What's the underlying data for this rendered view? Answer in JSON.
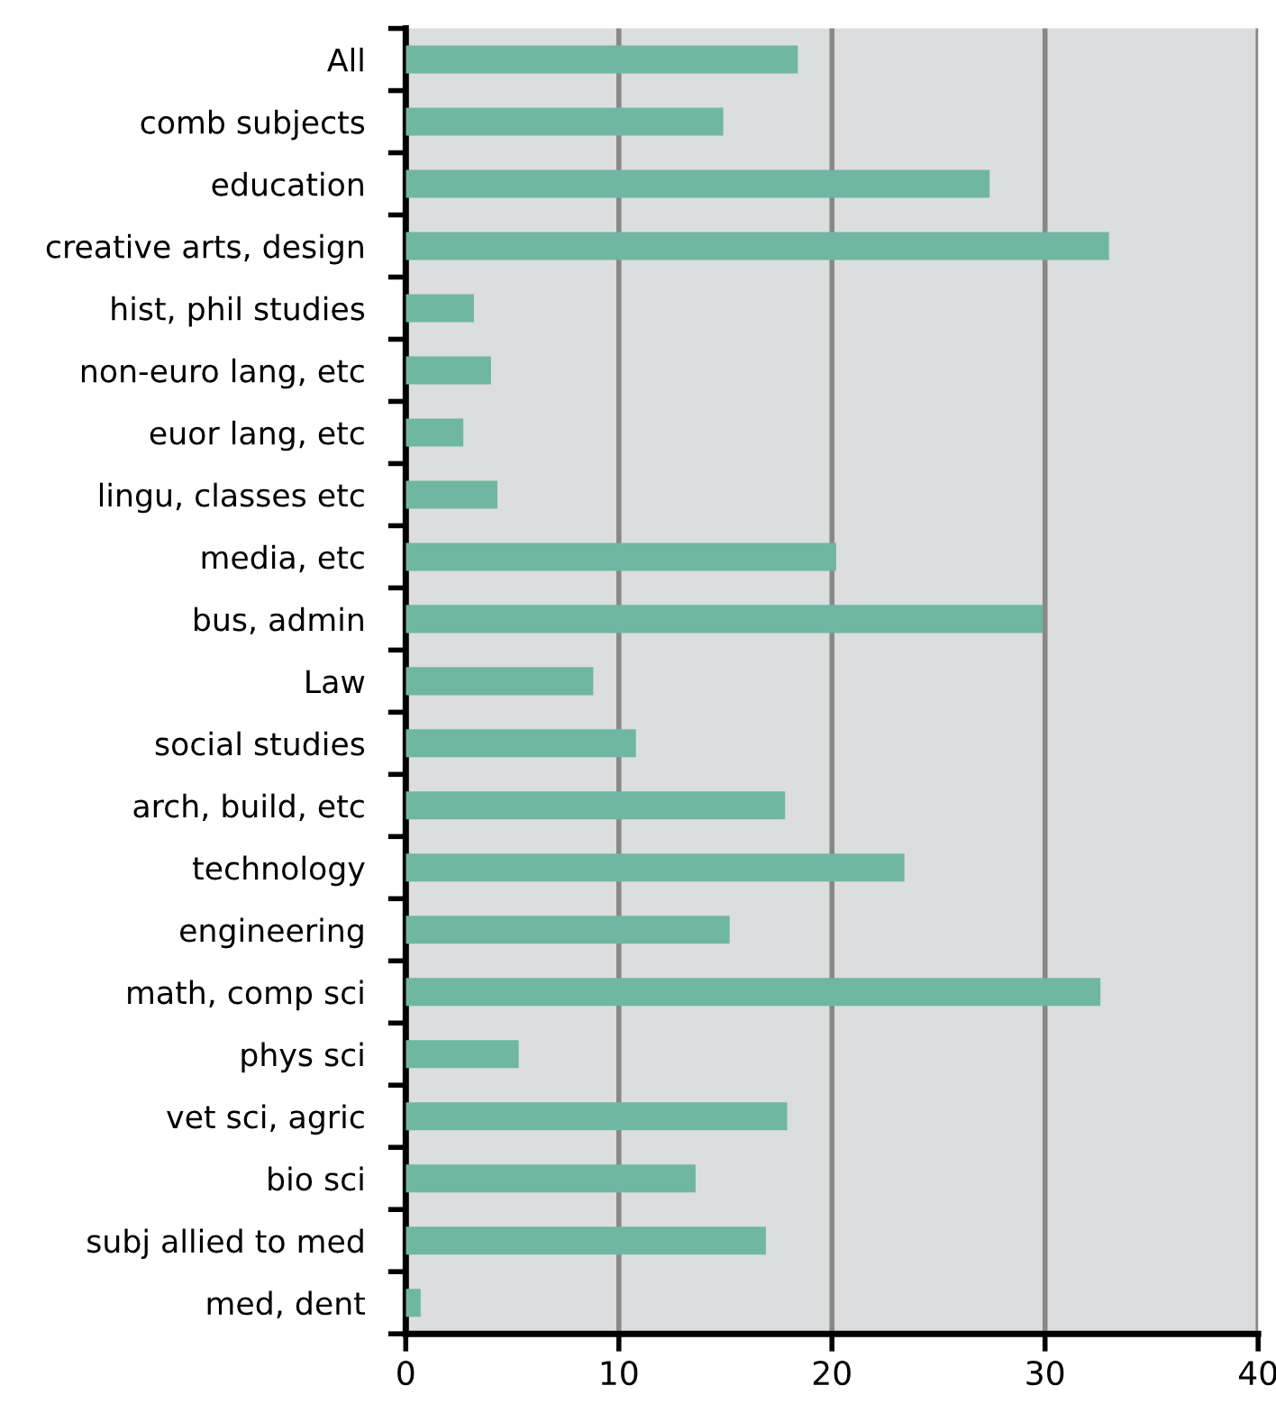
{
  "chart_data": {
    "type": "bar",
    "orientation": "horizontal",
    "categories": [
      "All",
      "comb subjects",
      "education",
      "creative arts, design",
      "hist, phil studies",
      "non-euro lang, etc",
      "euor lang, etc",
      "lingu, classes etc",
      "media, etc",
      "bus, admin",
      "Law",
      "social studies",
      "arch, build, etc",
      "technology",
      "engineering",
      "math, comp sci",
      "phys sci",
      "vet sci, agric",
      "bio sci",
      "subj allied to med",
      "med, dent"
    ],
    "values": [
      18.4,
      14.9,
      27.4,
      33.0,
      3.2,
      4.0,
      2.7,
      4.3,
      20.2,
      29.9,
      8.8,
      10.8,
      17.8,
      23.4,
      15.2,
      32.6,
      5.3,
      17.9,
      13.6,
      16.9,
      0.7
    ],
    "color": "#6fb7a0",
    "xlim": [
      0,
      40
    ],
    "xticks": [
      0,
      10,
      20,
      30,
      40
    ],
    "grid": "x",
    "legend": false
  }
}
